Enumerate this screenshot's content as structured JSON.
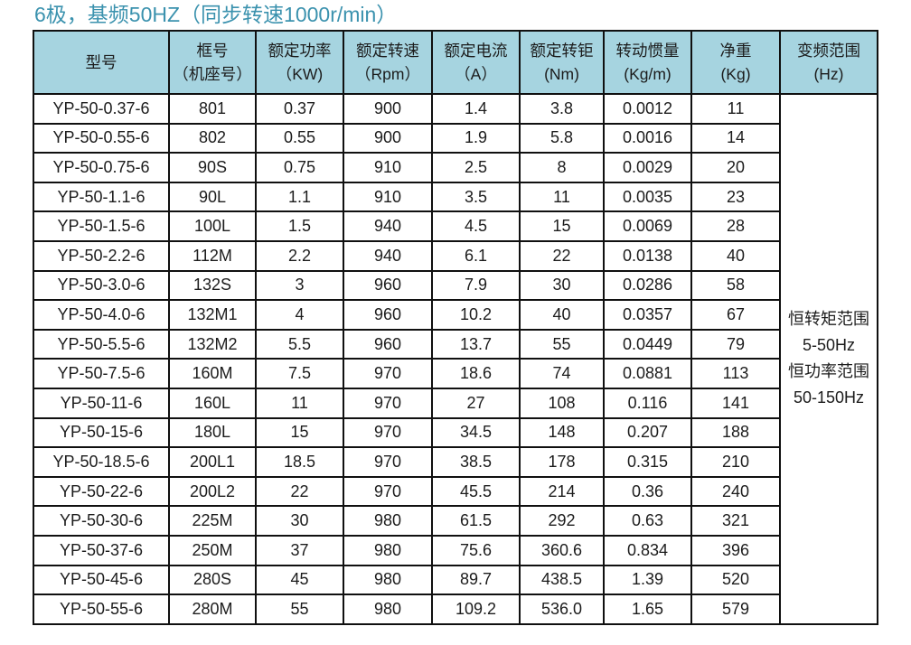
{
  "title": "6极，基频50HZ（同步转速1000r/min）",
  "colors": {
    "header_bg": "#a6d4e0",
    "title_text": "#3b92ae",
    "border": "#101010"
  },
  "table": {
    "headers": [
      {
        "name": "型号",
        "unit": ""
      },
      {
        "name": "框号",
        "unit": "（机座号）"
      },
      {
        "name": "额定功率",
        "unit": "（KW)"
      },
      {
        "name": "额定转速",
        "unit": "（Rpm）"
      },
      {
        "name": "额定电流",
        "unit": "（A）"
      },
      {
        "name": "额定转钜",
        "unit": "(Nm)"
      },
      {
        "name": "转动惯量",
        "unit": "(Kg/m)"
      },
      {
        "name": "净重",
        "unit": "(Kg)"
      },
      {
        "name": "变频范围",
        "unit": "(Hz)"
      }
    ],
    "rows": [
      [
        "YP-50-0.37-6",
        "801",
        "0.37",
        "900",
        "1.4",
        "3.8",
        "0.0012",
        "11"
      ],
      [
        "YP-50-0.55-6",
        "802",
        "0.55",
        "900",
        "1.9",
        "5.8",
        "0.0016",
        "14"
      ],
      [
        "YP-50-0.75-6",
        "90S",
        "0.75",
        "910",
        "2.5",
        "8",
        "0.0029",
        "20"
      ],
      [
        "YP-50-1.1-6",
        "90L",
        "1.1",
        "910",
        "3.5",
        "11",
        "0.0035",
        "23"
      ],
      [
        "YP-50-1.5-6",
        "100L",
        "1.5",
        "940",
        "4.5",
        "15",
        "0.0069",
        "28"
      ],
      [
        "YP-50-2.2-6",
        "112M",
        "2.2",
        "940",
        "6.1",
        "22",
        "0.0138",
        "40"
      ],
      [
        "YP-50-3.0-6",
        "132S",
        "3",
        "960",
        "7.9",
        "30",
        "0.0286",
        "58"
      ],
      [
        "YP-50-4.0-6",
        "132M1",
        "4",
        "960",
        "10.2",
        "40",
        "0.0357",
        "67"
      ],
      [
        "YP-50-5.5-6",
        "132M2",
        "5.5",
        "960",
        "13.7",
        "55",
        "0.0449",
        "79"
      ],
      [
        "YP-50-7.5-6",
        "160M",
        "7.5",
        "970",
        "18.6",
        "74",
        "0.0881",
        "113"
      ],
      [
        "YP-50-11-6",
        "160L",
        "11",
        "970",
        "27",
        "108",
        "0.116",
        "141"
      ],
      [
        "YP-50-15-6",
        "180L",
        "15",
        "970",
        "34.5",
        "148",
        "0.207",
        "188"
      ],
      [
        "YP-50-18.5-6",
        "200L1",
        "18.5",
        "970",
        "38.5",
        "178",
        "0.315",
        "210"
      ],
      [
        "YP-50-22-6",
        "200L2",
        "22",
        "970",
        "45.5",
        "214",
        "0.36",
        "240"
      ],
      [
        "YP-50-30-6",
        "225M",
        "30",
        "980",
        "61.5",
        "292",
        "0.63",
        "321"
      ],
      [
        "YP-50-37-6",
        "250M",
        "37",
        "980",
        "75.6",
        "360.6",
        "0.834",
        "396"
      ],
      [
        "YP-50-45-6",
        "280S",
        "45",
        "980",
        "89.7",
        "438.5",
        "1.39",
        "520"
      ],
      [
        "YP-50-55-6",
        "280M",
        "55",
        "980",
        "109.2",
        "536.0",
        "1.65",
        "579"
      ]
    ],
    "freq_range_lines": [
      "恒转矩范围",
      "5-50Hz",
      "恒功率范围",
      "50-150Hz"
    ]
  }
}
